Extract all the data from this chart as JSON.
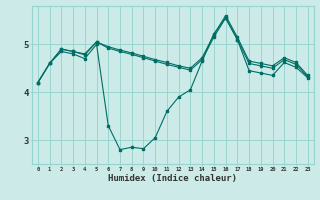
{
  "title": "",
  "xlabel": "Humidex (Indice chaleur)",
  "ylabel": "",
  "background_color": "#cceae7",
  "grid_color": "#99d5d0",
  "line_color": "#006e65",
  "line1_x": [
    0,
    1,
    2,
    3,
    4,
    5,
    6,
    7,
    8,
    9,
    10,
    11,
    12,
    13,
    14,
    15,
    16,
    17,
    18,
    19,
    20,
    21,
    22,
    23
  ],
  "line1_y": [
    4.2,
    4.6,
    4.9,
    4.85,
    4.8,
    5.05,
    4.95,
    4.88,
    4.82,
    4.75,
    4.68,
    4.62,
    4.55,
    4.5,
    4.72,
    5.2,
    5.6,
    5.15,
    4.65,
    4.6,
    4.55,
    4.72,
    4.62,
    4.35
  ],
  "line2_x": [
    0,
    1,
    2,
    3,
    4,
    5,
    6,
    7,
    8,
    9,
    10,
    11,
    12,
    13,
    14,
    15,
    16,
    17,
    18,
    19,
    20,
    21,
    22,
    23
  ],
  "line2_y": [
    4.2,
    4.6,
    4.9,
    4.85,
    4.78,
    5.05,
    4.92,
    4.85,
    4.79,
    4.72,
    4.65,
    4.58,
    4.52,
    4.46,
    4.68,
    5.15,
    5.55,
    5.1,
    4.6,
    4.55,
    4.5,
    4.68,
    4.58,
    4.32
  ],
  "line3_x": [
    0,
    1,
    2,
    3,
    4,
    5,
    6,
    7,
    8,
    9,
    10,
    11,
    12,
    13,
    14,
    15,
    16,
    17,
    18,
    19,
    20,
    21,
    22,
    23
  ],
  "line3_y": [
    4.2,
    4.6,
    4.85,
    4.8,
    4.7,
    5.0,
    3.3,
    2.8,
    2.85,
    2.82,
    3.05,
    3.6,
    3.9,
    4.05,
    4.65,
    5.22,
    5.55,
    5.1,
    4.45,
    4.4,
    4.35,
    4.62,
    4.52,
    4.3
  ],
  "xtick_labels": [
    "0",
    "1",
    "2",
    "3",
    "4",
    "5",
    "6",
    "7",
    "8",
    "9",
    "10",
    "11",
    "12",
    "13",
    "14",
    "15",
    "16",
    "17",
    "18",
    "19",
    "20",
    "21",
    "22",
    "23"
  ],
  "yticks": [
    3,
    4,
    5
  ],
  "ytick_labels": [
    "3",
    "4",
    "5"
  ],
  "xlim": [
    -0.5,
    23.5
  ],
  "ylim": [
    2.5,
    5.8
  ]
}
